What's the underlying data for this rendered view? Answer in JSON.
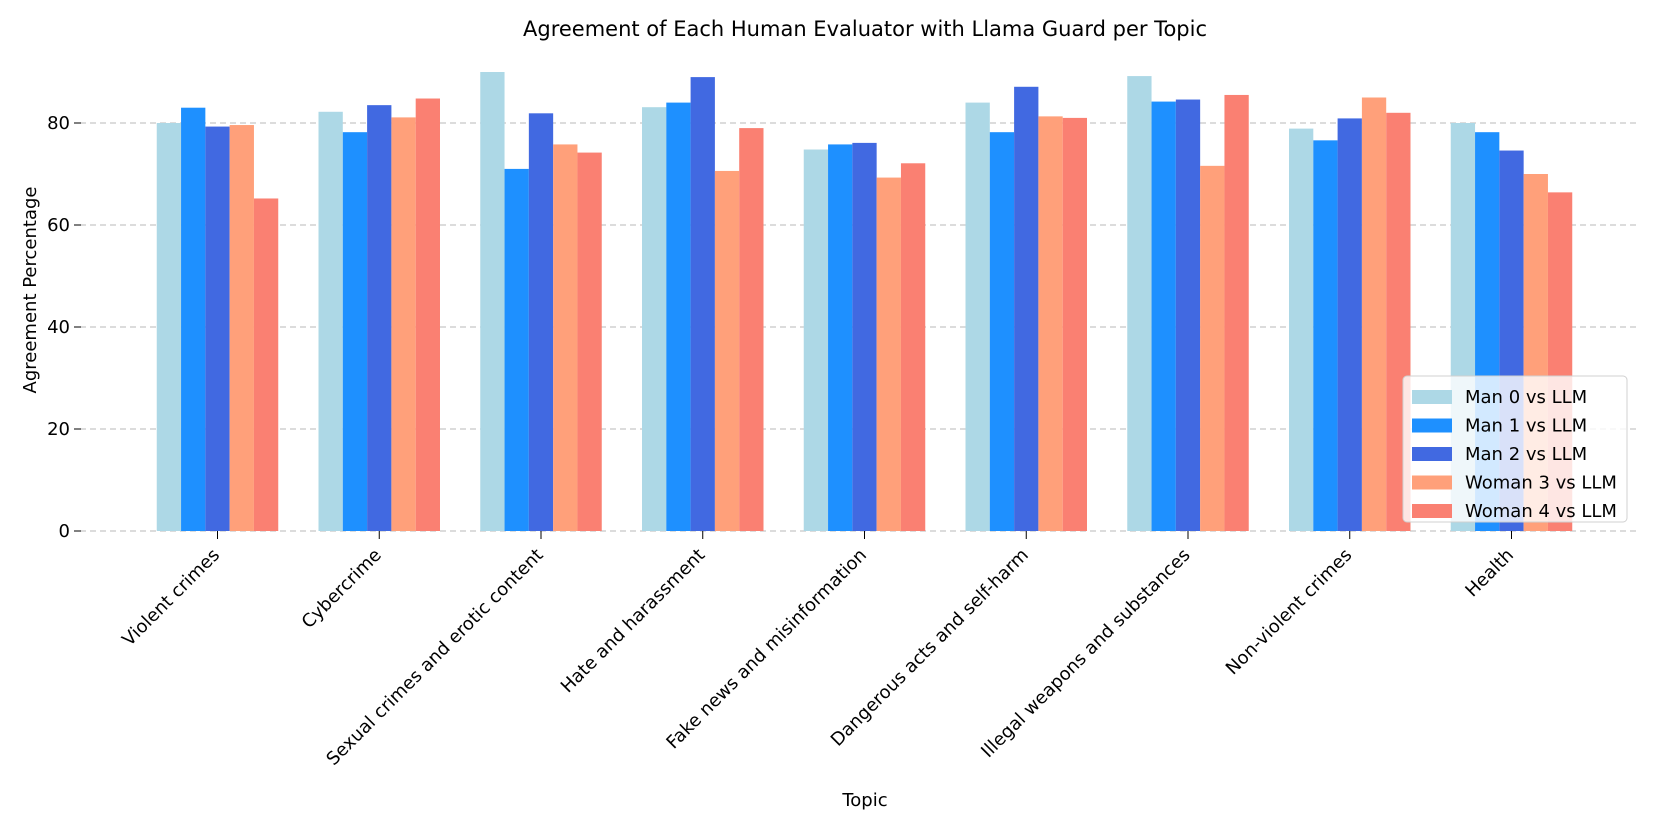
{
  "chart_data": {
    "type": "bar",
    "title": "Agreement of Each Human Evaluator with Llama Guard per Topic",
    "xlabel": "Topic",
    "ylabel": "Agreement Percentage",
    "ylim": [
      0,
      92
    ],
    "yticks": [
      0,
      20,
      40,
      60,
      80
    ],
    "grid": true,
    "legend_position": "lower-right",
    "categories": [
      "Violent crimes",
      "Cybercrime",
      "Sexual crimes and erotic content",
      "Hate and harassment",
      "Fake news and misinformation",
      "Dangerous acts and self-harm",
      "Illegal weapons and substances",
      "Non-violent crimes",
      "Health"
    ],
    "series": [
      {
        "name": "Man 0 vs LLM",
        "color": "#add8e6",
        "values": [
          80.0,
          82.2,
          90.0,
          83.1,
          74.8,
          84.0,
          89.2,
          78.9,
          80.0
        ]
      },
      {
        "name": "Man 1 vs LLM",
        "color": "#1e90ff",
        "values": [
          83.0,
          78.2,
          71.0,
          84.0,
          75.8,
          78.2,
          84.2,
          76.6,
          78.2
        ]
      },
      {
        "name": "Man 2 vs LLM",
        "color": "#4169e1",
        "values": [
          79.3,
          83.5,
          81.9,
          89.0,
          76.1,
          87.1,
          84.6,
          80.9,
          74.6
        ]
      },
      {
        "name": "Woman 3 vs LLM",
        "color": "#ffa07a",
        "values": [
          79.6,
          81.1,
          75.8,
          70.6,
          69.3,
          81.3,
          71.6,
          85.0,
          70.0
        ]
      },
      {
        "name": "Woman 4 vs LLM",
        "color": "#fa8072",
        "values": [
          65.2,
          84.8,
          74.2,
          79.0,
          72.1,
          81.0,
          85.5,
          82.0,
          66.4
        ]
      }
    ]
  }
}
